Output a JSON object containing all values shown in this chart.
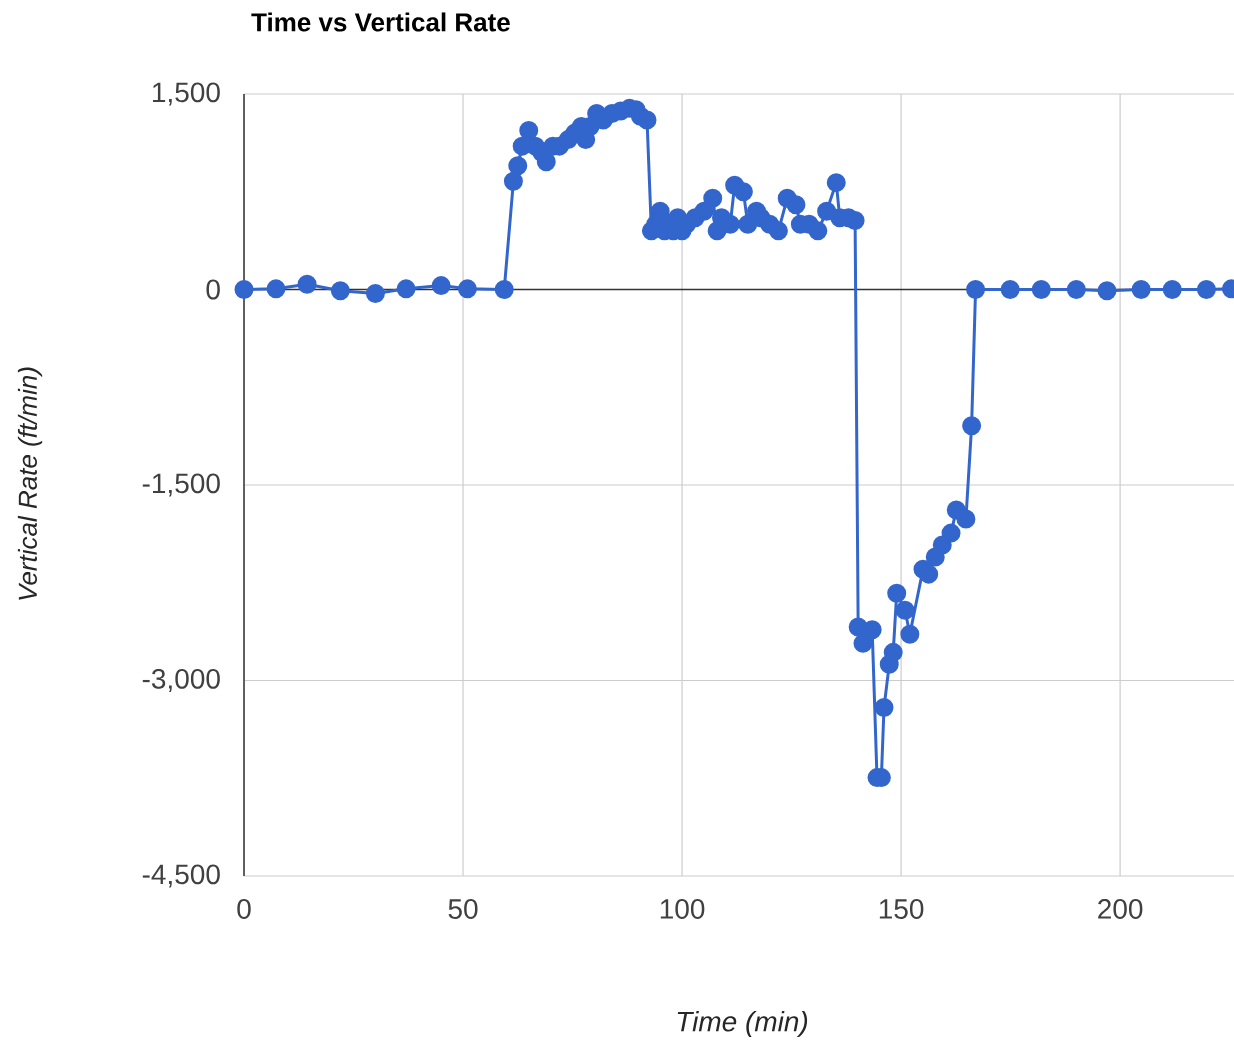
{
  "chart_data": {
    "type": "line",
    "title": "Time vs Vertical Rate",
    "xlabel": "Time (min)",
    "ylabel": "Vertical Rate (ft/min)",
    "xlim": [
      0,
      226
    ],
    "xticks": [
      0,
      50,
      100,
      150,
      200
    ],
    "ylim": [
      -4500,
      1500
    ],
    "yticks": [
      {
        "value": 1500,
        "label": "1,500"
      },
      0,
      {
        "value": -1500,
        "label": "-1,500"
      },
      {
        "value": -3000,
        "label": "-3,000"
      },
      {
        "value": -4500,
        "label": "-4,500"
      }
    ],
    "grid": true,
    "marker": "circle",
    "line_style": "solid",
    "ref_lines": [
      {
        "axis": "y",
        "value": 0,
        "color": "#333333"
      }
    ],
    "series": [
      {
        "color": "#3366cc",
        "x": [
          0,
          7.3,
          14.4,
          22,
          30,
          37,
          45,
          51,
          59.4,
          61.5,
          62.5,
          63.5,
          65,
          66.5,
          68,
          69,
          70.5,
          72,
          74,
          75.5,
          77,
          78,
          79,
          80.5,
          82,
          84,
          86,
          88,
          89.5,
          90.5,
          92,
          93,
          94,
          95,
          96,
          97,
          98,
          99,
          100,
          101,
          103,
          105,
          107,
          108,
          109,
          111,
          112,
          114,
          115,
          117,
          118,
          120,
          122,
          124,
          126,
          127,
          129,
          131,
          133,
          135.2,
          136,
          138,
          139.5,
          140.2,
          141.3,
          143.4,
          144.5,
          145.5,
          146.1,
          147.3,
          148.2,
          149,
          150.9,
          152,
          155,
          156.3,
          157.8,
          159.4,
          161.4,
          162.6,
          164.8,
          166.1,
          167,
          174.9,
          182,
          190,
          197,
          204.8,
          211.9,
          219.7,
          225.4
        ],
        "values": [
          0,
          5,
          40,
          -10,
          -30,
          5,
          30,
          5,
          0,
          830,
          950,
          1100,
          1220,
          1100,
          1050,
          980,
          1100,
          1100,
          1150,
          1200,
          1250,
          1150,
          1250,
          1350,
          1300,
          1350,
          1370,
          1390,
          1380,
          1330,
          1300,
          450,
          500,
          600,
          450,
          500,
          450,
          550,
          450,
          500,
          550,
          600,
          700,
          450,
          550,
          500,
          800,
          750,
          500,
          600,
          550,
          500,
          450,
          700,
          650,
          500,
          500,
          450,
          600,
          820,
          550,
          550,
          530,
          -2590,
          -2715,
          -2610,
          -3745,
          -3745,
          -3207,
          -2876,
          -2784,
          -2330,
          -2461,
          -2645,
          -2146,
          -2184,
          -2053,
          -1961,
          -1869,
          -1692,
          -1761,
          -1046,
          0,
          0,
          0,
          0,
          -10,
          0,
          0,
          0,
          5
        ]
      }
    ]
  }
}
